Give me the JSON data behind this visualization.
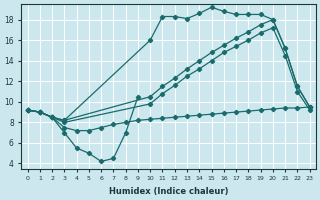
{
  "xlabel": "Humidex (Indice chaleur)",
  "bg_color": "#cce8ee",
  "grid_color": "#ffffff",
  "line_color": "#1a6b6b",
  "xlim": [
    -0.5,
    23.5
  ],
  "ylim": [
    3.5,
    19.5
  ],
  "yticks": [
    4,
    6,
    8,
    10,
    12,
    14,
    16,
    18
  ],
  "curve_v_x": [
    0,
    1,
    2,
    3,
    4,
    5,
    6,
    7,
    8,
    9
  ],
  "curve_v_y": [
    9.2,
    9.0,
    8.5,
    7.0,
    5.5,
    5.0,
    4.2,
    4.5,
    7.0,
    10.5
  ],
  "curve_low_x": [
    0,
    1,
    2,
    3,
    4,
    5,
    6,
    7,
    8,
    9,
    10,
    11,
    12,
    13,
    14,
    15,
    16,
    17,
    18,
    19,
    20,
    21,
    22,
    23
  ],
  "curve_low_y": [
    9.2,
    9.0,
    8.5,
    7.5,
    7.2,
    7.2,
    7.5,
    7.8,
    8.0,
    8.2,
    8.3,
    8.4,
    8.5,
    8.6,
    8.7,
    8.8,
    8.9,
    9.0,
    9.1,
    9.2,
    9.3,
    9.4,
    9.4,
    9.5
  ],
  "curve_mid1_x": [
    0,
    1,
    2,
    3,
    10,
    11,
    12,
    13,
    14,
    15,
    16,
    17,
    18,
    19,
    20,
    21,
    22,
    23
  ],
  "curve_mid1_y": [
    9.2,
    9.0,
    8.5,
    8.2,
    10.5,
    11.5,
    12.3,
    13.2,
    14.0,
    14.8,
    15.5,
    16.2,
    16.8,
    17.5,
    18.0,
    15.2,
    11.5,
    9.5
  ],
  "curve_mid2_x": [
    0,
    1,
    2,
    3,
    10,
    11,
    12,
    13,
    14,
    15,
    16,
    17,
    18,
    19,
    20,
    21,
    22,
    23
  ],
  "curve_mid2_y": [
    9.2,
    9.0,
    8.5,
    8.0,
    9.8,
    10.8,
    11.6,
    12.5,
    13.2,
    14.0,
    14.8,
    15.4,
    16.0,
    16.7,
    17.2,
    14.5,
    11.0,
    9.2
  ],
  "curve_upper_x": [
    0,
    1,
    2,
    3,
    10,
    11,
    12,
    13,
    14,
    15,
    16,
    17,
    18,
    19,
    20,
    21,
    22,
    23
  ],
  "curve_upper_y": [
    9.2,
    9.0,
    8.5,
    8.2,
    16.0,
    18.3,
    18.3,
    18.1,
    18.6,
    19.2,
    18.8,
    18.5,
    18.5,
    18.5,
    18.0,
    15.2,
    11.5,
    9.5
  ]
}
